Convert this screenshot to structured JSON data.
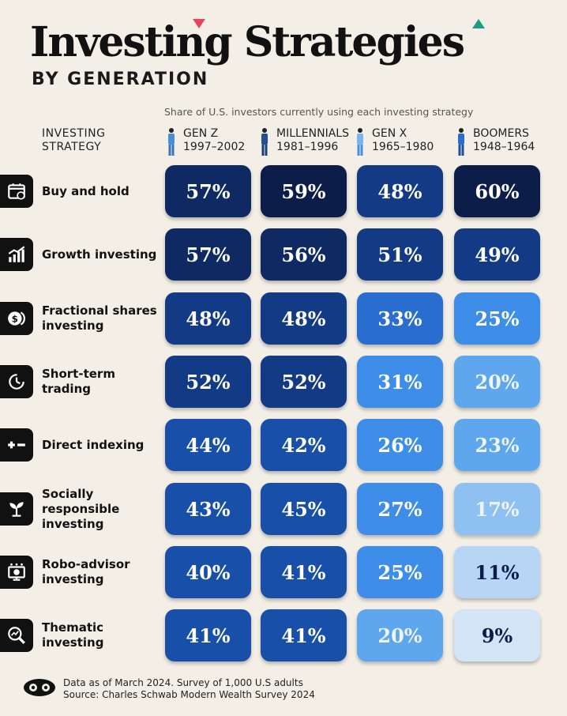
{
  "header": {
    "title": "Investing Strategies",
    "subtitle": "BY GENERATION",
    "note": "Share of U.S. investors currently using each investing strategy"
  },
  "strategy_header": [
    "INVESTING",
    "STRATEGY"
  ],
  "columns": [
    {
      "name": "GEN Z",
      "years": "1997–2002"
    },
    {
      "name": "MILLENNIALS",
      "years": "1981–1996"
    },
    {
      "name": "GEN X",
      "years": "1965–1980"
    },
    {
      "name": "BOOMERS",
      "years": "1948–1964"
    }
  ],
  "rows": [
    {
      "label": "Buy and hold",
      "icon": "calendar-icon",
      "cells": [
        "57%",
        "59%",
        "48%",
        "60%"
      ]
    },
    {
      "label": "Growth investing",
      "icon": "growth-chart-icon",
      "cells": [
        "57%",
        "56%",
        "51%",
        "49%"
      ]
    },
    {
      "label": "Fractional shares investing",
      "icon": "coin-fraction-icon",
      "cells": [
        "48%",
        "48%",
        "33%",
        "25%"
      ]
    },
    {
      "label": "Short-term trading",
      "icon": "clock-icon",
      "cells": [
        "52%",
        "52%",
        "31%",
        "20%"
      ]
    },
    {
      "label": "Direct indexing",
      "icon": "plus-minus-icon",
      "cells": [
        "44%",
        "42%",
        "26%",
        "23%"
      ]
    },
    {
      "label": "Socially responsible investing",
      "icon": "plant-icon",
      "cells": [
        "43%",
        "45%",
        "27%",
        "17%"
      ]
    },
    {
      "label": "Robo-advisor investing",
      "icon": "robo-monitor-icon",
      "cells": [
        "40%",
        "41%",
        "25%",
        "11%"
      ]
    },
    {
      "label": "Thematic investing",
      "icon": "magnifier-chart-icon",
      "cells": [
        "41%",
        "41%",
        "20%",
        "9%"
      ]
    }
  ],
  "chart_data": {
    "type": "heatmap",
    "title": "Investing Strategies",
    "subtitle": "BY GENERATION",
    "categories": [
      "Buy and hold",
      "Growth investing",
      "Fractional shares investing",
      "Short-term trading",
      "Direct indexing",
      "Socially responsible investing",
      "Robo-advisor investing",
      "Thematic investing"
    ],
    "series": [
      {
        "name": "GEN Z",
        "values": [
          57,
          57,
          48,
          52,
          44,
          43,
          40,
          41
        ]
      },
      {
        "name": "MILLENNIALS",
        "values": [
          59,
          56,
          48,
          52,
          42,
          45,
          41,
          41
        ]
      },
      {
        "name": "GEN X",
        "values": [
          48,
          51,
          33,
          31,
          26,
          27,
          25,
          20
        ]
      },
      {
        "name": "BOOMERS",
        "values": [
          60,
          49,
          25,
          20,
          23,
          17,
          11,
          9
        ]
      }
    ],
    "unit": "%"
  },
  "colors": {
    "background": "#f3efe6",
    "scale": [
      "#d2e4f6",
      "#b7d6f5",
      "#8ec1f2",
      "#5ea6ee",
      "#3e8ee9",
      "#2a6dd1",
      "#184fa8",
      "#123a85",
      "#0f2a63",
      "#0b1d48"
    ]
  },
  "footer": {
    "line1": "Data as of March 2024. Survey of 1,000 U.S adults",
    "line2": "Source: Charles Schwab Modern Wealth Survey 2024"
  }
}
